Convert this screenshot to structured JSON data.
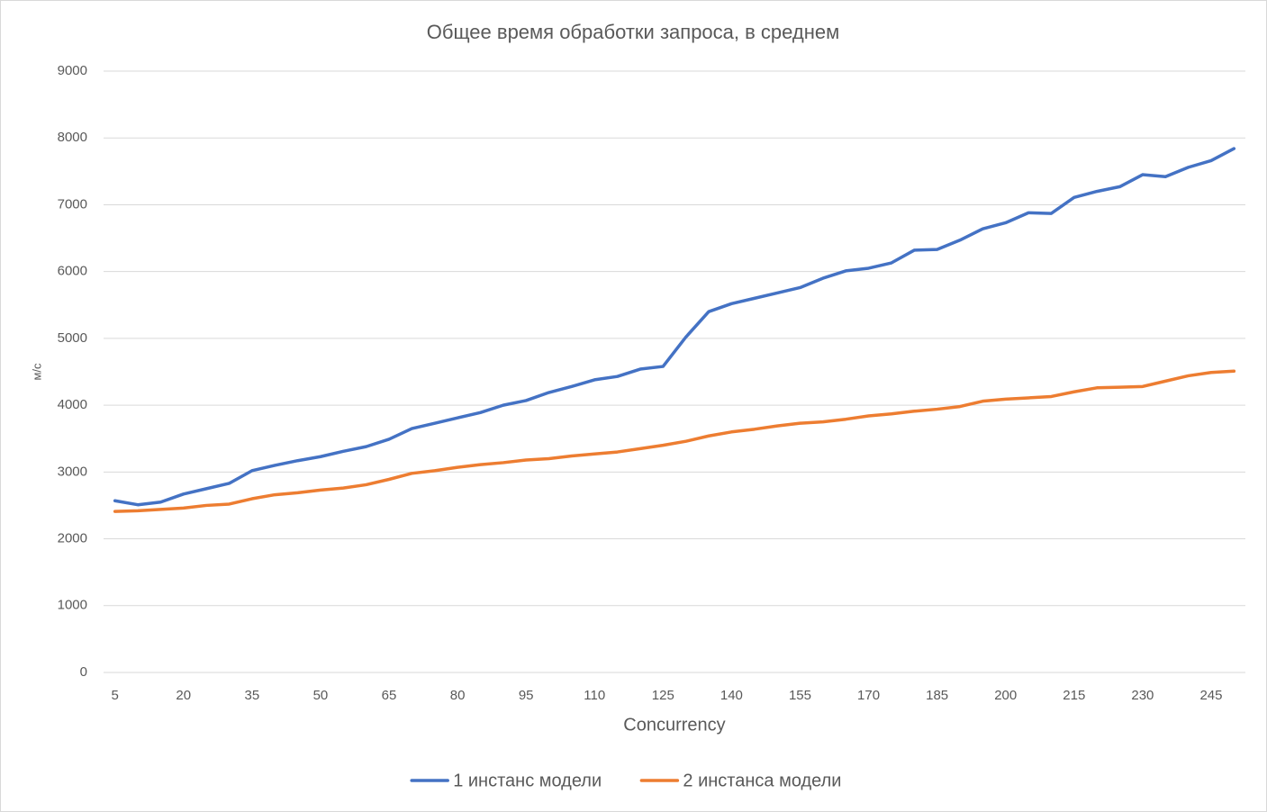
{
  "chart_data": {
    "type": "line",
    "title": "Общее время обработки запроса, в среднем",
    "x_label": "Concurrency",
    "y_label": "м/с",
    "categories": [
      "5",
      null,
      null,
      "20",
      null,
      null,
      "35",
      null,
      null,
      "50",
      null,
      null,
      "65",
      null,
      null,
      "80",
      null,
      null,
      "95",
      null,
      null,
      "110",
      null,
      null,
      "125",
      null,
      null,
      "140",
      null,
      null,
      "155",
      null,
      null,
      "170",
      null,
      null,
      "185",
      null,
      null,
      "200",
      null,
      null,
      "215",
      null,
      null,
      "230",
      null,
      null,
      "245",
      null
    ],
    "series": [
      {
        "name": "1 инстанс модели",
        "color": "#4472c4",
        "values": [
          2570,
          2510,
          2550,
          2670,
          2750,
          2830,
          3020,
          3100,
          3170,
          3230,
          3310,
          3380,
          3490,
          3650,
          3730,
          3810,
          3890,
          4000,
          4070,
          4190,
          4280,
          4380,
          4430,
          4540,
          4580,
          5020,
          5400,
          5520,
          5600,
          5680,
          5760,
          5900,
          6010,
          6050,
          6130,
          6320,
          6330,
          6470,
          6640,
          6730,
          6880,
          6870,
          7110,
          7200,
          7270,
          7450,
          7420,
          7560,
          7660,
          7840
        ]
      },
      {
        "name": "2 инстанса модели",
        "color": "#ed7d31",
        "values": [
          2410,
          2420,
          2440,
          2460,
          2500,
          2520,
          2600,
          2660,
          2690,
          2730,
          2760,
          2810,
          2890,
          2980,
          3020,
          3070,
          3110,
          3140,
          3180,
          3200,
          3240,
          3270,
          3300,
          3350,
          3400,
          3460,
          3540,
          3600,
          3640,
          3690,
          3730,
          3750,
          3790,
          3840,
          3870,
          3910,
          3940,
          3980,
          4060,
          4090,
          4110,
          4130,
          4200,
          4260,
          4270,
          4280,
          4360,
          4440,
          4490,
          4510
        ]
      }
    ],
    "ylim": [
      0,
      9000
    ],
    "yticks": [
      0,
      1000,
      2000,
      3000,
      4000,
      5000,
      6000,
      7000,
      8000,
      9000
    ],
    "grid": true,
    "legend": "bottom"
  }
}
